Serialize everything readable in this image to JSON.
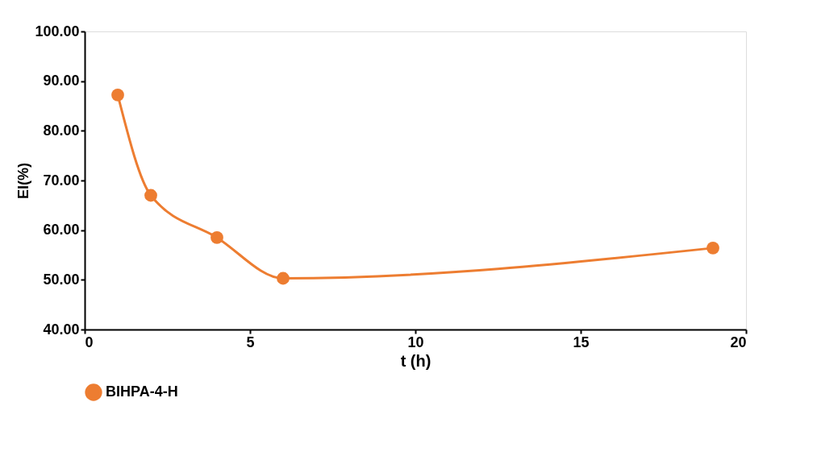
{
  "chart_data": {
    "type": "line",
    "xlabel": "t (h)",
    "ylabel": "EI(%)",
    "x": [
      1,
      2,
      4,
      6,
      19
    ],
    "series": [
      {
        "name": "BIHPA-4-H",
        "color": "#ed7d31",
        "values": [
          87.2,
          67.0,
          58.5,
          50.3,
          56.4
        ]
      }
    ],
    "xlim": [
      0,
      20
    ],
    "xticks": [
      0,
      5,
      10,
      15,
      20
    ],
    "ylim": [
      40,
      100
    ],
    "yticks": [
      {
        "value": 40,
        "label": "40.00"
      },
      {
        "value": 50,
        "label": "50.00"
      },
      {
        "value": 60,
        "label": "60.00"
      },
      {
        "value": 70,
        "label": "70.00"
      },
      {
        "value": 80,
        "label": "80.00"
      },
      {
        "value": 90,
        "label": "90.00"
      },
      {
        "value": 100,
        "label": "100.00"
      }
    ],
    "grid": false,
    "legend": "bottom",
    "marker": "circle",
    "line_style": "solid"
  }
}
